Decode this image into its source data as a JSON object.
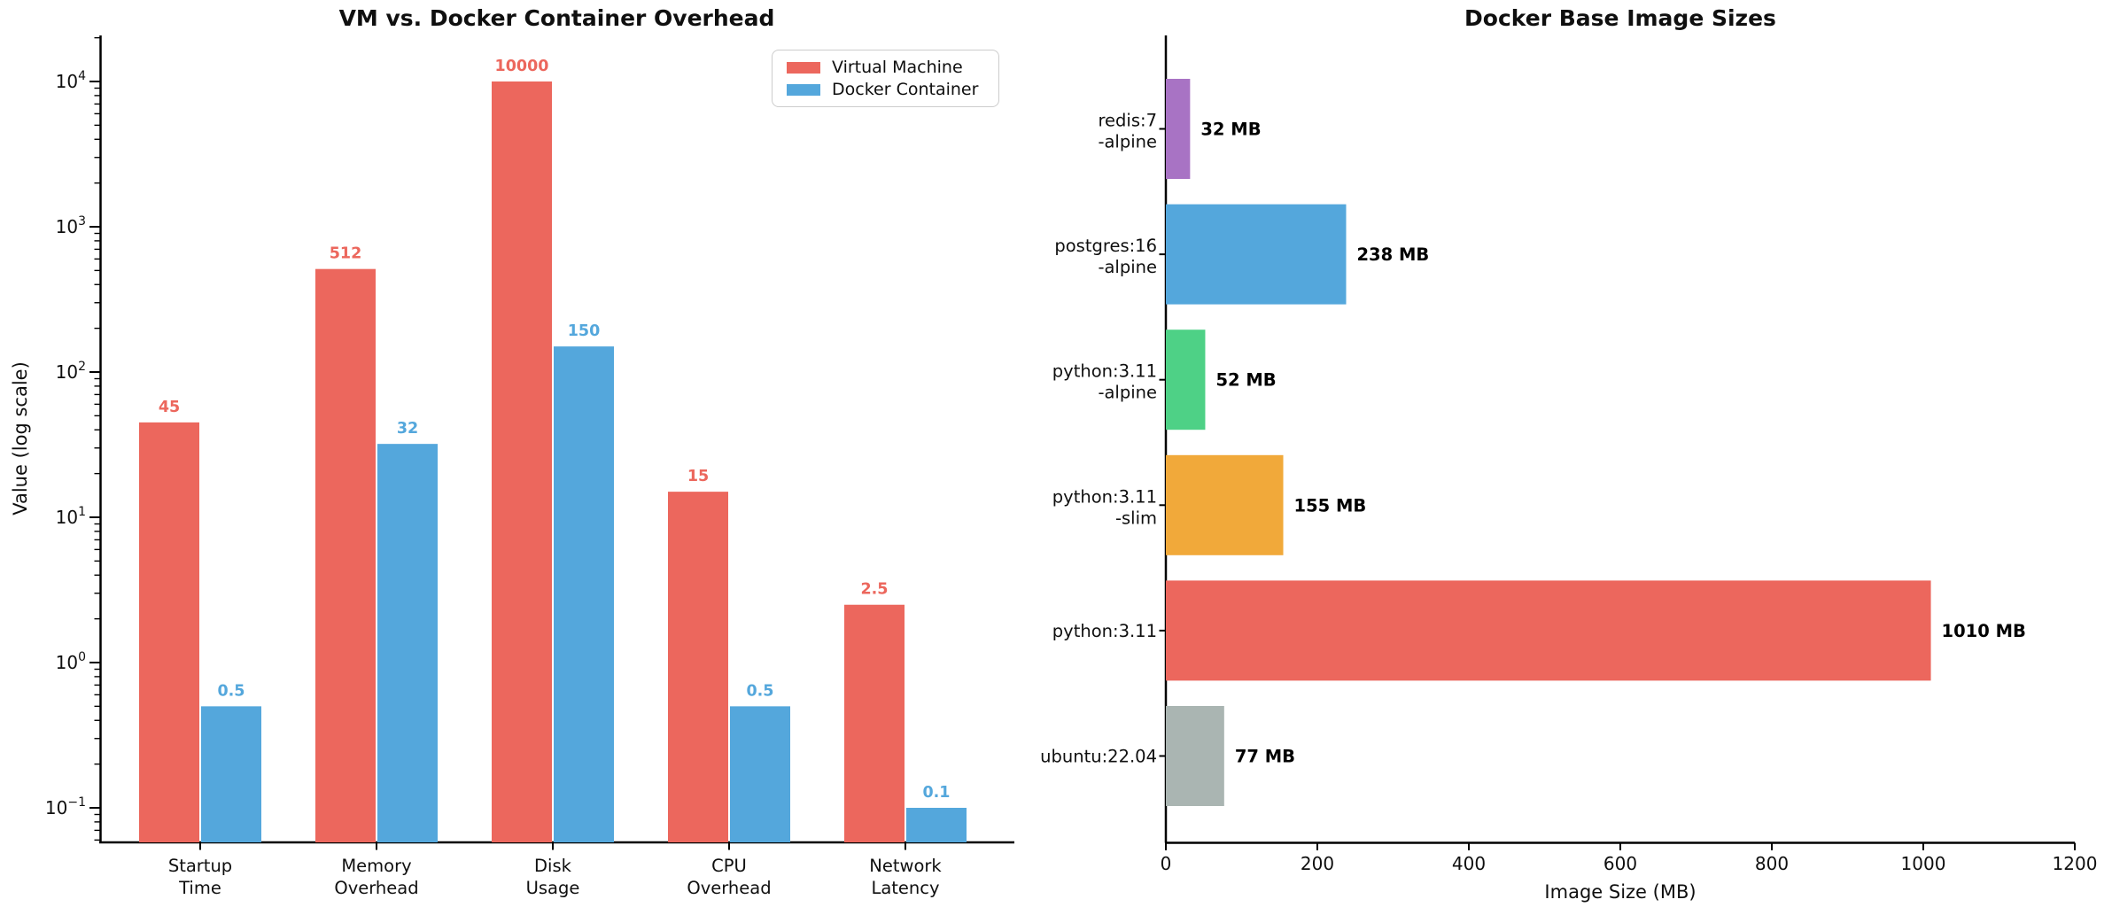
{
  "page": {
    "background": "#ffffff"
  },
  "chart_data": [
    {
      "type": "bar",
      "orientation": "vertical",
      "title": "VM vs. Docker Container Overhead",
      "xlabel": "",
      "ylabel": "Value (log scale)",
      "yscale": "log",
      "ylim": [
        0.058,
        20000
      ],
      "ytick_exponents": [
        -1,
        0,
        1,
        2,
        3,
        4
      ],
      "grid": false,
      "legend_position": "upper right",
      "categories": [
        "Startup\nTime",
        "Memory\nOverhead",
        "Disk\nUsage",
        "CPU\nOverhead",
        "Network\nLatency"
      ],
      "series": [
        {
          "name": "Virtual Machine",
          "color": "#ec675d",
          "values": [
            45,
            512,
            10000,
            15,
            2.5
          ],
          "value_labels": [
            "45",
            "512",
            "10000",
            "15",
            "2.5"
          ]
        },
        {
          "name": "Docker Container",
          "color": "#54a7dc",
          "values": [
            0.5,
            32,
            150,
            0.5,
            0.1
          ],
          "value_labels": [
            "0.5",
            "32",
            "150",
            "0.5",
            "0.1"
          ]
        }
      ]
    },
    {
      "type": "bar",
      "orientation": "horizontal",
      "title": "Docker Base Image Sizes",
      "xlabel": "Image Size (MB)",
      "ylabel": "",
      "xlim": [
        0,
        1200
      ],
      "xticks": [
        0,
        200,
        400,
        600,
        800,
        1000,
        1200
      ],
      "grid": false,
      "categories": [
        "redis:7\n-alpine",
        "postgres:16\n-alpine",
        "python:3.11\n-alpine",
        "python:3.11\n-slim",
        "python:3.11",
        "ubuntu:22.04"
      ],
      "values": [
        32,
        238,
        52,
        155,
        1010,
        77
      ],
      "value_labels": [
        "32 MB",
        "238 MB",
        "52 MB",
        "155 MB",
        "1010 MB",
        "77 MB"
      ],
      "colors": [
        "#a873c4",
        "#54a7dc",
        "#4ed186",
        "#f1a93a",
        "#ec675d",
        "#aab5b2"
      ],
      "axis_color": "#000000",
      "text_color": "#0f0f0f"
    }
  ]
}
